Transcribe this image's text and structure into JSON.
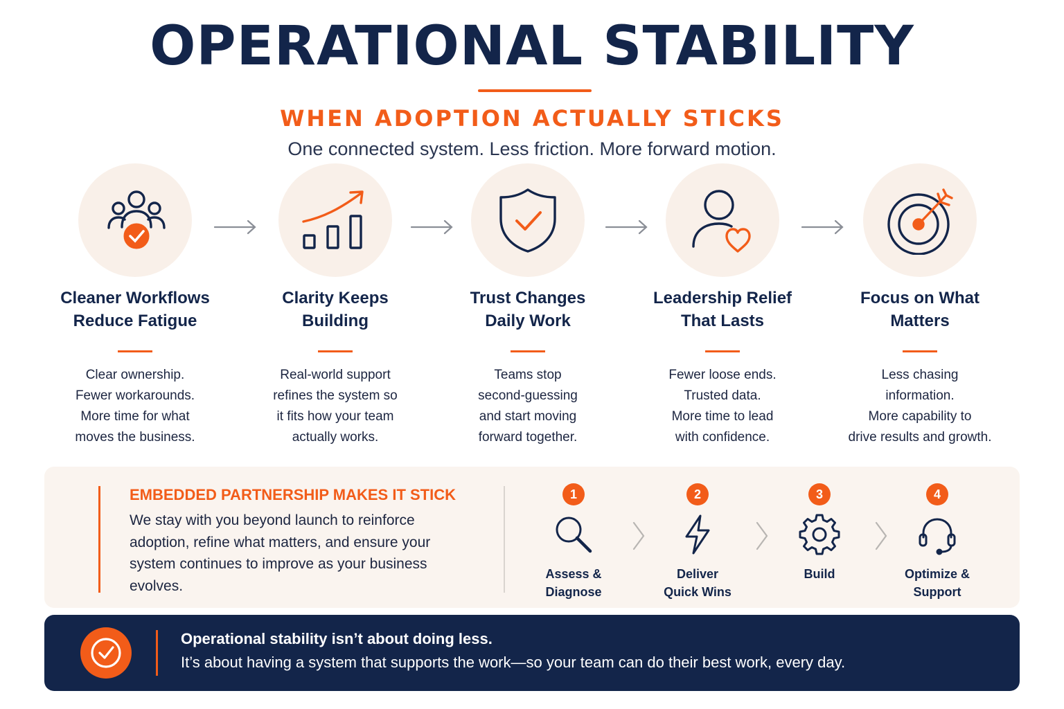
{
  "header": {
    "title": "OPERATIONAL STABILITY",
    "subtitle": "WHEN ADOPTION ACTUALLY STICKS",
    "tagline": "One connected system. Less friction. More forward motion."
  },
  "colors": {
    "navy": "#13254a",
    "accent": "#f25c19",
    "circle_bg": "#f9f0e9",
    "panel_bg": "#faf4ef"
  },
  "steps": [
    {
      "icon": "team-check-icon",
      "title": "Cleaner Workflows\nReduce Fatigue",
      "description": "Clear ownership.\nFewer workarounds.\nMore time for what\nmoves the business."
    },
    {
      "icon": "growth-chart-icon",
      "title": "Clarity Keeps\nBuilding",
      "description": "Real-world support\nrefines the system so\nit fits how your team\nactually works."
    },
    {
      "icon": "shield-check-icon",
      "title": "Trust Changes\nDaily Work",
      "description": "Teams stop\nsecond-guessing\nand start moving\nforward together."
    },
    {
      "icon": "person-heart-icon",
      "title": "Leadership Relief\nThat Lasts",
      "description": "Fewer loose ends.\nTrusted data.\nMore time to lead\nwith confidence."
    },
    {
      "icon": "target-arrow-icon",
      "title": "Focus on What\nMatters",
      "description": "Less chasing\ninformation.\nMore capability to\ndrive results and growth."
    }
  ],
  "partnership": {
    "heading": "EMBEDDED PARTNERSHIP MAKES IT STICK",
    "text": "We stay with you beyond launch to reinforce adoption, refine what matters, and ensure your system continues to improve as your business evolves.",
    "phases": [
      {
        "number": "1",
        "icon": "magnifier-icon",
        "label": "Assess &\nDiagnose"
      },
      {
        "number": "2",
        "icon": "lightning-icon",
        "label": "Deliver\nQuick Wins"
      },
      {
        "number": "3",
        "icon": "gear-icon",
        "label": "Build"
      },
      {
        "number": "4",
        "icon": "headset-icon",
        "label": "Optimize &\nSupport"
      }
    ]
  },
  "footer": {
    "icon": "check-circle-icon",
    "heading": "Operational stability isn’t about doing less.",
    "text": "It’s about having a system that supports the work—so your team can do their best work, every day."
  }
}
